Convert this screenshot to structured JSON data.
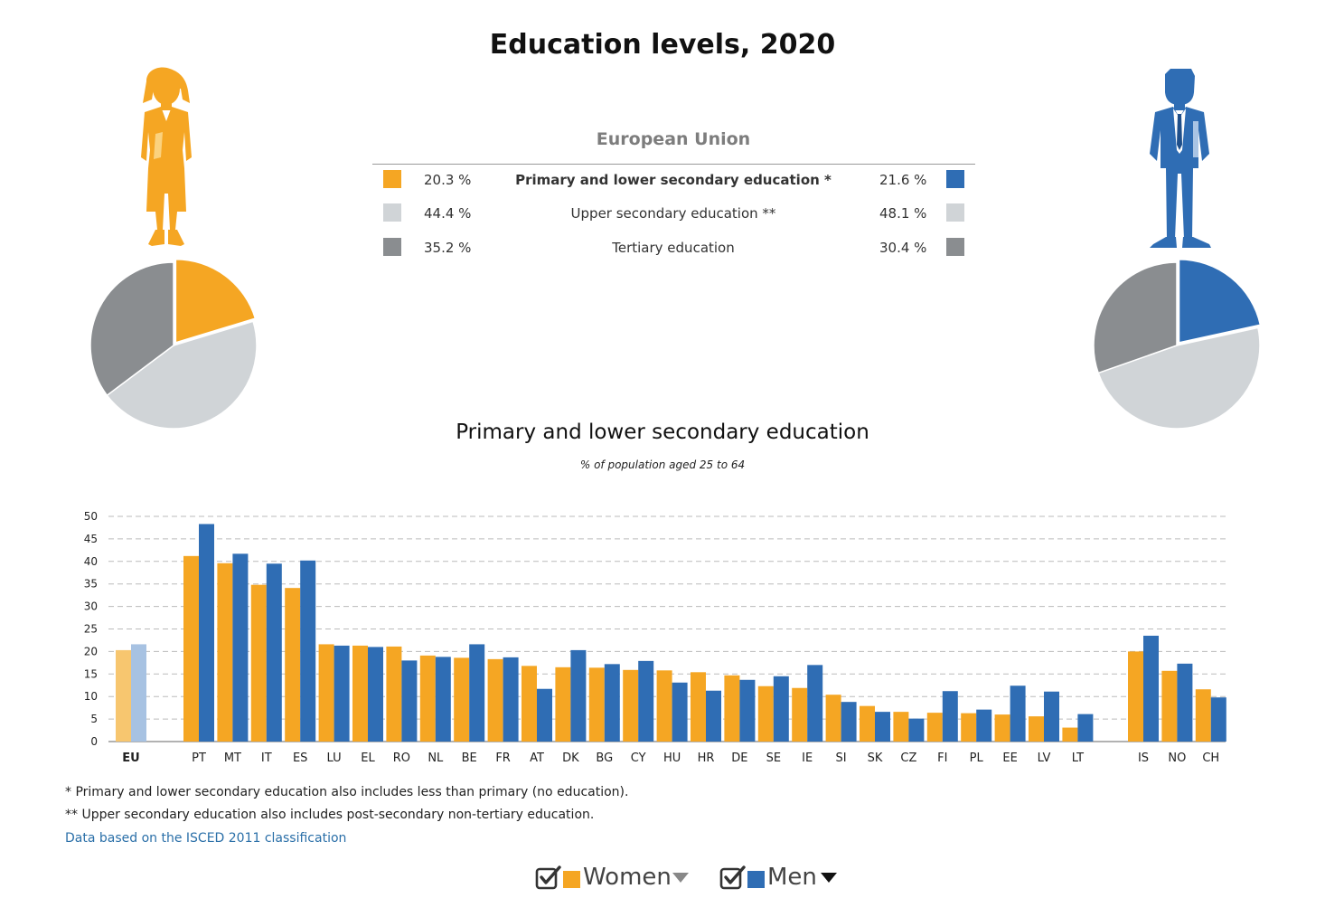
{
  "title": "Education levels, 2020",
  "colors": {
    "primary_women": "#f5a623",
    "primary_men": "#2f6db4",
    "upper_secondary": "#d0d4d7",
    "tertiary": "#8a8d90",
    "eu_women": "#f7c66f",
    "eu_men": "#a7c2e2",
    "grid": "#bbbbbb",
    "link": "#2a6fa8"
  },
  "legend": {
    "region": "European Union",
    "rows": [
      {
        "women": "20.3 %",
        "label": "Primary and lower secondary education *",
        "men": "21.6 %",
        "women_color": "#f5a623",
        "men_color": "#2f6db4"
      },
      {
        "women": "44.4 %",
        "label": "Upper secondary education **",
        "men": "48.1 %",
        "women_color": "#d0d4d7",
        "men_color": "#d0d4d7"
      },
      {
        "women": "35.2 %",
        "label": "Tertiary education",
        "men": "30.4 %",
        "women_color": "#8a8d90",
        "men_color": "#8a8d90"
      }
    ]
  },
  "pies": {
    "women": {
      "icon": "woman-figure-icon",
      "values": [
        20.3,
        44.4,
        35.2
      ]
    },
    "men": {
      "icon": "man-figure-icon",
      "values": [
        21.6,
        48.1,
        30.4
      ]
    }
  },
  "chart_data": [
    {
      "type": "pie",
      "labels": [
        "Primary and lower secondary education *",
        "Upper secondary education **",
        "Tertiary education"
      ],
      "values": [
        20.3,
        44.4,
        35.2
      ],
      "colors": [
        "#f5a623",
        "#d0d4d7",
        "#8a8d90"
      ]
    },
    {
      "type": "pie",
      "labels": [
        "Primary and lower secondary education *",
        "Upper secondary education **",
        "Tertiary education"
      ],
      "values": [
        21.6,
        48.1,
        30.4
      ],
      "colors": [
        "#2f6db4",
        "#d0d4d7",
        "#8a8d90"
      ]
    },
    {
      "type": "bar",
      "title": "Primary and lower secondary education",
      "subtitle": "% of population aged 25 to 64",
      "xlabel": "",
      "ylabel": "",
      "ylim": [
        0,
        50
      ],
      "yticks": [
        0,
        5,
        10,
        15,
        20,
        25,
        30,
        35,
        40,
        45,
        50
      ],
      "grid": true,
      "categories": [
        "EU",
        "PT",
        "MT",
        "IT",
        "ES",
        "LU",
        "EL",
        "RO",
        "NL",
        "BE",
        "FR",
        "AT",
        "DK",
        "BG",
        "CY",
        "HU",
        "HR",
        "DE",
        "SE",
        "IE",
        "SI",
        "SK",
        "CZ",
        "FI",
        "PL",
        "EE",
        "LV",
        "LT",
        "IS",
        "NO",
        "CH"
      ],
      "series": [
        {
          "name": "Women",
          "color": "#f5a623",
          "values": [
            20.3,
            41.2,
            39.6,
            34.8,
            34.1,
            21.6,
            21.3,
            21.1,
            19.1,
            18.6,
            18.3,
            16.8,
            16.5,
            16.4,
            15.9,
            15.8,
            15.4,
            14.7,
            12.3,
            11.9,
            10.4,
            7.9,
            6.6,
            6.4,
            6.3,
            6.0,
            5.6,
            3.1,
            20.0,
            15.7,
            11.6
          ]
        },
        {
          "name": "Men",
          "color": "#2f6db4",
          "values": [
            21.6,
            48.3,
            41.7,
            39.5,
            40.2,
            21.3,
            21.0,
            18.0,
            18.8,
            21.6,
            18.7,
            11.7,
            20.3,
            17.2,
            17.9,
            13.1,
            11.3,
            13.7,
            14.5,
            17.0,
            8.8,
            6.6,
            5.1,
            11.2,
            7.1,
            12.4,
            11.1,
            6.1,
            23.5,
            17.3,
            9.8
          ]
        }
      ]
    }
  ],
  "notes": {
    "primary": "* Primary and lower secondary education also includes less than primary (no education).",
    "upper": "** Upper secondary education also includes post-secondary non-tertiary education.",
    "link": "Data based on the ISCED 2011 classification"
  },
  "toggles": {
    "women": {
      "label": "Women",
      "checked": true,
      "color": "#f5a623",
      "caret_color": "#888888"
    },
    "men": {
      "label": "Men",
      "checked": true,
      "color": "#2f6db4",
      "caret_color": "#111111"
    }
  }
}
